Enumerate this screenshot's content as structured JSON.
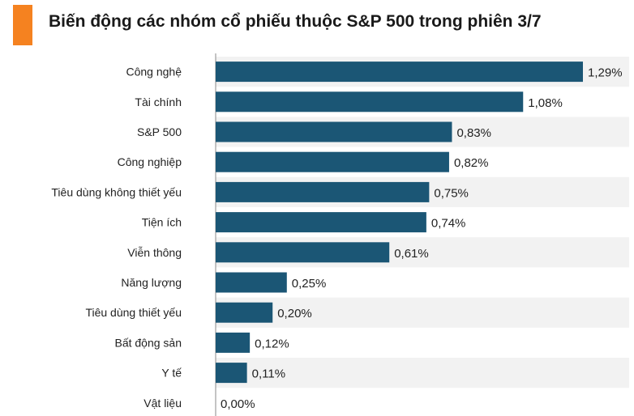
{
  "title": "Biến động các nhóm cổ phiếu thuộc S&P 500 trong phiên 3/7",
  "colors": {
    "accent": "#f58220",
    "bar": "#1b5675",
    "row_band": "#f2f2f2"
  },
  "chart_data": {
    "type": "bar",
    "orientation": "horizontal",
    "title": "Biến động các nhóm cổ phiếu thuộc S&P 500 trong phiên 3/7",
    "categories": [
      "Công nghệ",
      "Tài chính",
      "S&P 500",
      "Công nghiệp",
      "Tiêu dùng không thiết yếu",
      "Tiện ích",
      "Viễn thông",
      "Năng lượng",
      "Tiêu dùng thiết yếu",
      "Bất động sản",
      "Y tế",
      "Vật liệu"
    ],
    "values": [
      1.29,
      1.08,
      0.83,
      0.82,
      0.75,
      0.74,
      0.61,
      0.25,
      0.2,
      0.12,
      0.11,
      0.0
    ],
    "value_labels": [
      "1,29%",
      "1,08%",
      "0,83%",
      "0,82%",
      "0,75%",
      "0,74%",
      "0,61%",
      "0,25%",
      "0,20%",
      "0,12%",
      "0,11%",
      "0,00%"
    ],
    "xlim": [
      0,
      1.29
    ],
    "grid": false
  }
}
